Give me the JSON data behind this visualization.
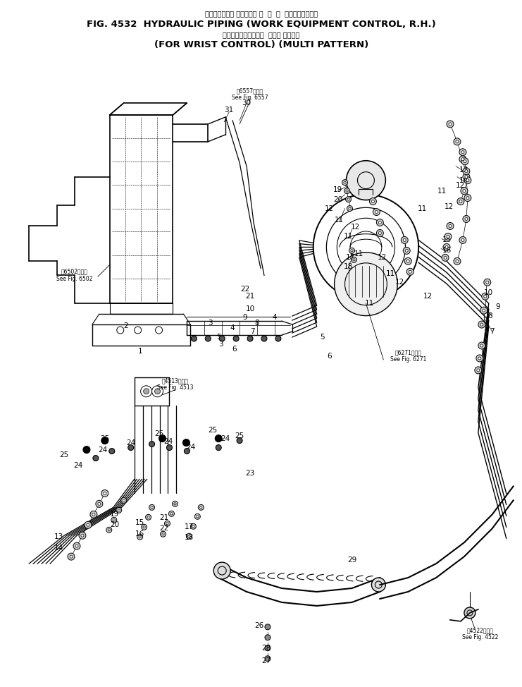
{
  "title_line1_jp": "ハイドロリック パイピング 作  業  機  コントロール，右",
  "title_line1_en": "FIG. 4532  HYDRAULIC PIPING (WORK EQUIPMENT CONTROL, R.H.)",
  "title_line2_jp": "リストコントロール用  マルチ パターン",
  "title_line2_en": "(FOR WRIST CONTROL) (MULTI PATTERN)",
  "bg_color": "#ffffff",
  "fig_width": 7.41,
  "fig_height": 9.74,
  "dpi": 100
}
